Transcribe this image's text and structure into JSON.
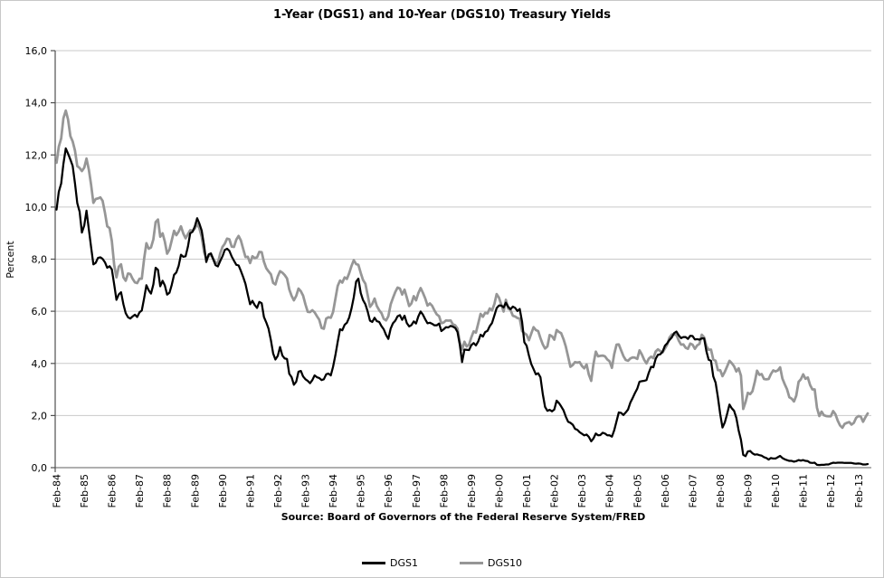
{
  "title": "1-Year (DGS1) and 10-Year (DGS10) Treasury Yields",
  "source_note": "Source: Board of Governors of the Federal Reserve System/FRED",
  "colors": {
    "dgs1": "#000000",
    "dgs10": "#969696",
    "gridline": "#c9c9c9",
    "x_axis": "#7f7f7f",
    "y_axis": "#4f4f4f",
    "text": "#000000"
  },
  "chart_data": {
    "type": "line",
    "title": "1-Year (DGS1) and 10-Year (DGS10) Treasury Yields",
    "xlabel": "",
    "ylabel": "Percent",
    "ylim": [
      0,
      16
    ],
    "grid": true,
    "legend_position": "bottom",
    "x_start": "Feb-1984",
    "x_frequency": "monthly",
    "x_tick_interval_months": 12,
    "x_tick_labels": [
      "Feb-84",
      "Feb-85",
      "Feb-86",
      "Feb-87",
      "Feb-88",
      "Feb-89",
      "Feb-90",
      "Feb-91",
      "Feb-92",
      "Feb-93",
      "Feb-94",
      "Feb-95",
      "Feb-96",
      "Feb-97",
      "Feb-98",
      "Feb-99",
      "Feb-00",
      "Feb-01",
      "Feb-02",
      "Feb-03",
      "Feb-04",
      "Feb-05",
      "Feb-06",
      "Feb-07",
      "Feb-08",
      "Feb-09",
      "Feb-10",
      "Feb-11",
      "Feb-12",
      "Feb-13"
    ],
    "y_ticks": [
      0,
      2,
      4,
      6,
      8,
      10,
      12,
      14,
      16
    ],
    "y_tick_labels": [
      "0,0",
      "2,0",
      "4,0",
      "6,0",
      "8,0",
      "10,0",
      "12,0",
      "14,0",
      "16,0"
    ],
    "series": [
      {
        "name": "DGS1",
        "color": "#000000",
        "width": 2.25,
        "values": [
          9.9,
          10.59,
          10.9,
          11.66,
          12.25,
          12.05,
          11.82,
          11.58,
          10.9,
          10.15,
          9.82,
          9.02,
          9.29,
          9.86,
          9.14,
          8.46,
          7.8,
          7.86,
          8.05,
          8.07,
          8.01,
          7.88,
          7.67,
          7.73,
          7.61,
          7.03,
          6.44,
          6.65,
          6.73,
          6.27,
          5.93,
          5.77,
          5.72,
          5.8,
          5.87,
          5.78,
          5.96,
          6.03,
          6.5,
          7.0,
          6.8,
          6.68,
          7.03,
          7.67,
          7.59,
          6.96,
          7.17,
          6.99,
          6.64,
          6.71,
          7.01,
          7.4,
          7.49,
          7.75,
          8.17,
          8.09,
          8.11,
          8.48,
          8.99,
          9.05,
          9.25,
          9.57,
          9.36,
          9.1,
          8.53,
          7.89,
          8.18,
          8.22,
          7.99,
          7.77,
          7.72,
          7.92,
          8.11,
          8.35,
          8.4,
          8.32,
          8.1,
          7.94,
          7.78,
          7.76,
          7.55,
          7.31,
          7.05,
          6.64,
          6.27,
          6.4,
          6.24,
          6.13,
          6.36,
          6.31,
          5.78,
          5.57,
          5.33,
          4.89,
          4.38,
          4.15,
          4.29,
          4.63,
          4.3,
          4.19,
          4.17,
          3.6,
          3.47,
          3.18,
          3.3,
          3.68,
          3.71,
          3.5,
          3.39,
          3.33,
          3.24,
          3.36,
          3.54,
          3.47,
          3.44,
          3.36,
          3.39,
          3.58,
          3.61,
          3.54,
          3.87,
          4.32,
          4.82,
          5.31,
          5.27,
          5.48,
          5.56,
          5.76,
          6.11,
          6.54,
          7.14,
          7.25,
          6.7,
          6.43,
          6.27,
          6.0,
          5.64,
          5.59,
          5.75,
          5.62,
          5.59,
          5.43,
          5.31,
          5.09,
          4.94,
          5.34,
          5.54,
          5.64,
          5.81,
          5.85,
          5.67,
          5.83,
          5.55,
          5.42,
          5.47,
          5.61,
          5.53,
          5.8,
          5.99,
          5.87,
          5.69,
          5.54,
          5.56,
          5.52,
          5.46,
          5.46,
          5.53,
          5.24,
          5.31,
          5.39,
          5.38,
          5.44,
          5.41,
          5.36,
          5.21,
          4.71,
          4.05,
          4.53,
          4.52,
          4.51,
          4.7,
          4.78,
          4.69,
          4.85,
          5.1,
          5.03,
          5.2,
          5.25,
          5.43,
          5.55,
          5.84,
          6.12,
          6.22,
          6.22,
          6.15,
          6.33,
          6.17,
          6.08,
          6.18,
          6.13,
          6.01,
          6.09,
          5.6,
          4.81,
          4.68,
          4.3,
          3.98,
          3.78,
          3.58,
          3.62,
          3.47,
          2.82,
          2.33,
          2.18,
          2.22,
          2.16,
          2.23,
          2.57,
          2.48,
          2.35,
          2.2,
          1.96,
          1.76,
          1.72,
          1.65,
          1.49,
          1.45,
          1.36,
          1.3,
          1.24,
          1.27,
          1.18,
          1.01,
          1.12,
          1.31,
          1.24,
          1.25,
          1.34,
          1.31,
          1.24,
          1.24,
          1.19,
          1.43,
          1.78,
          2.12,
          2.1,
          2.02,
          2.12,
          2.23,
          2.5,
          2.67,
          2.86,
          3.03,
          3.3,
          3.32,
          3.33,
          3.36,
          3.64,
          3.87,
          3.85,
          4.18,
          4.33,
          4.35,
          4.45,
          4.68,
          4.77,
          4.9,
          5.0,
          5.16,
          5.22,
          5.08,
          4.97,
          5.01,
          5.01,
          4.94,
          5.06,
          5.05,
          4.92,
          4.93,
          4.91,
          4.96,
          4.96,
          4.47,
          4.14,
          4.1,
          3.5,
          3.26,
          2.71,
          2.05,
          1.54,
          1.74,
          2.06,
          2.42,
          2.28,
          2.18,
          1.91,
          1.42,
          1.07,
          0.49,
          0.44,
          0.62,
          0.64,
          0.55,
          0.5,
          0.51,
          0.48,
          0.46,
          0.4,
          0.37,
          0.31,
          0.37,
          0.35,
          0.35,
          0.4,
          0.45,
          0.37,
          0.32,
          0.29,
          0.26,
          0.26,
          0.23,
          0.25,
          0.29,
          0.27,
          0.29,
          0.26,
          0.25,
          0.19,
          0.18,
          0.19,
          0.11,
          0.1,
          0.11,
          0.11,
          0.12,
          0.12,
          0.16,
          0.19,
          0.18,
          0.19,
          0.19,
          0.19,
          0.18,
          0.18,
          0.18,
          0.18,
          0.16,
          0.15,
          0.16,
          0.15,
          0.12,
          0.12,
          0.14
        ]
      },
      {
        "name": "DGS10",
        "color": "#969696",
        "width": 2.75,
        "values": [
          11.7,
          12.32,
          12.63,
          13.41,
          13.7,
          13.36,
          12.72,
          12.52,
          12.16,
          11.57,
          11.5,
          11.38,
          11.51,
          11.86,
          11.43,
          10.85,
          10.16,
          10.31,
          10.33,
          10.37,
          10.24,
          9.78,
          9.26,
          9.19,
          8.7,
          7.78,
          7.3,
          7.71,
          7.8,
          7.3,
          7.17,
          7.45,
          7.43,
          7.25,
          7.11,
          7.08,
          7.25,
          7.25,
          8.02,
          8.61,
          8.4,
          8.45,
          8.76,
          9.42,
          9.52,
          8.86,
          8.99,
          8.67,
          8.21,
          8.37,
          8.72,
          9.09,
          8.92,
          9.06,
          9.26,
          8.98,
          8.8,
          8.96,
          9.11,
          9.09,
          9.17,
          9.36,
          9.18,
          8.86,
          8.28,
          8.02,
          8.11,
          8.19,
          8.01,
          7.87,
          7.84,
          8.21,
          8.47,
          8.59,
          8.79,
          8.76,
          8.48,
          8.47,
          8.75,
          8.89,
          8.72,
          8.39,
          8.08,
          8.09,
          7.85,
          8.11,
          8.04,
          8.07,
          8.28,
          8.27,
          7.9,
          7.65,
          7.53,
          7.42,
          7.09,
          7.03,
          7.34,
          7.54,
          7.48,
          7.39,
          7.26,
          6.84,
          6.59,
          6.42,
          6.59,
          6.87,
          6.77,
          6.6,
          6.26,
          5.98,
          5.97,
          6.04,
          5.96,
          5.81,
          5.68,
          5.36,
          5.33,
          5.72,
          5.77,
          5.75,
          5.97,
          6.48,
          6.97,
          7.18,
          7.1,
          7.3,
          7.24,
          7.46,
          7.74,
          7.96,
          7.81,
          7.78,
          7.47,
          7.2,
          7.06,
          6.63,
          6.17,
          6.28,
          6.49,
          6.2,
          6.04,
          5.93,
          5.71,
          5.65,
          5.81,
          6.27,
          6.51,
          6.74,
          6.91,
          6.87,
          6.64,
          6.83,
          6.53,
          6.2,
          6.3,
          6.58,
          6.42,
          6.69,
          6.89,
          6.71,
          6.49,
          6.22,
          6.3,
          6.21,
          6.03,
          5.88,
          5.81,
          5.54,
          5.57,
          5.65,
          5.64,
          5.65,
          5.5,
          5.46,
          5.34,
          4.81,
          4.53,
          4.83,
          4.65,
          4.72,
          5.0,
          5.23,
          5.18,
          5.54,
          5.9,
          5.79,
          5.94,
          5.92,
          6.11,
          6.03,
          6.28,
          6.66,
          6.52,
          6.26,
          5.99,
          6.44,
          6.1,
          6.05,
          5.83,
          5.8,
          5.74,
          5.72,
          5.24,
          5.16,
          5.1,
          4.89,
          5.14,
          5.39,
          5.28,
          5.24,
          4.97,
          4.73,
          4.57,
          4.65,
          5.09,
          5.04,
          4.91,
          5.28,
          5.21,
          5.16,
          4.93,
          4.65,
          4.26,
          3.87,
          3.94,
          4.05,
          4.03,
          4.05,
          3.9,
          3.81,
          3.96,
          3.57,
          3.33,
          3.98,
          4.45,
          4.27,
          4.29,
          4.3,
          4.27,
          4.15,
          4.08,
          3.83,
          4.35,
          4.72,
          4.73,
          4.5,
          4.28,
          4.13,
          4.1,
          4.19,
          4.23,
          4.22,
          4.17,
          4.5,
          4.34,
          4.14,
          4.0,
          4.18,
          4.26,
          4.2,
          4.46,
          4.54,
          4.47,
          4.42,
          4.57,
          4.72,
          4.99,
          5.11,
          5.11,
          5.09,
          4.88,
          4.72,
          4.73,
          4.6,
          4.56,
          4.76,
          4.72,
          4.56,
          4.69,
          4.75,
          5.1,
          5.0,
          4.67,
          4.52,
          4.53,
          4.15,
          4.1,
          3.74,
          3.74,
          3.51,
          3.68,
          3.88,
          4.1,
          4.01,
          3.89,
          3.69,
          3.81,
          3.53,
          2.25,
          2.52,
          2.87,
          2.82,
          2.93,
          3.29,
          3.72,
          3.56,
          3.59,
          3.4,
          3.39,
          3.4,
          3.59,
          3.73,
          3.69,
          3.73,
          3.85,
          3.42,
          3.2,
          3.01,
          2.7,
          2.65,
          2.54,
          2.76,
          3.29,
          3.39,
          3.58,
          3.41,
          3.46,
          3.17,
          3.0,
          3.0,
          2.3,
          1.98,
          2.15,
          2.01,
          1.98,
          1.97,
          1.97,
          2.17,
          2.05,
          1.8,
          1.62,
          1.53,
          1.68,
          1.72,
          1.75,
          1.65,
          1.72,
          1.91,
          1.98,
          1.96,
          1.76,
          1.93,
          2.08
        ]
      }
    ]
  }
}
